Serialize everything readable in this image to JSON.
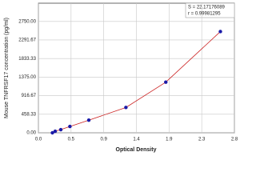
{
  "chart_data": {
    "type": "scatter",
    "x_label": "Optical Density",
    "y_label": "Mouse TNFRSF17 concentration (pg/ml)",
    "annotations": [
      "S = 22.17176089",
      "r = 0.99981295"
    ],
    "xlim": [
      0,
      2.8
    ],
    "xticks": [
      {
        "value": 0,
        "label": "0.0"
      },
      {
        "value": 0.4667,
        "label": "0.5"
      },
      {
        "value": 0.9333,
        "label": "0.9"
      },
      1.4,
      {
        "value": 1.8667,
        "label": "1.9"
      },
      {
        "value": 2.3333,
        "label": "2.3"
      },
      {
        "value": 2.8,
        "label": "2.8"
      }
    ],
    "ylim": [
      0,
      3200
    ],
    "yticks": [
      {
        "value": 0,
        "label": "0.00"
      },
      458.33,
      916.67,
      {
        "value": 1375,
        "label": "1375.00"
      },
      1833.33,
      2291.67,
      {
        "value": 2750,
        "label": "2750.00"
      }
    ],
    "grid": true,
    "series": [
      {
        "color": "#1a1aa8",
        "x": [
          0.2,
          0.24,
          0.32,
          0.45,
          0.72,
          1.25,
          1.82,
          2.6
        ],
        "values": [
          0,
          39,
          78,
          156,
          312,
          625,
          1250,
          2500
        ]
      }
    ],
    "fit_color": "#cc2222"
  }
}
